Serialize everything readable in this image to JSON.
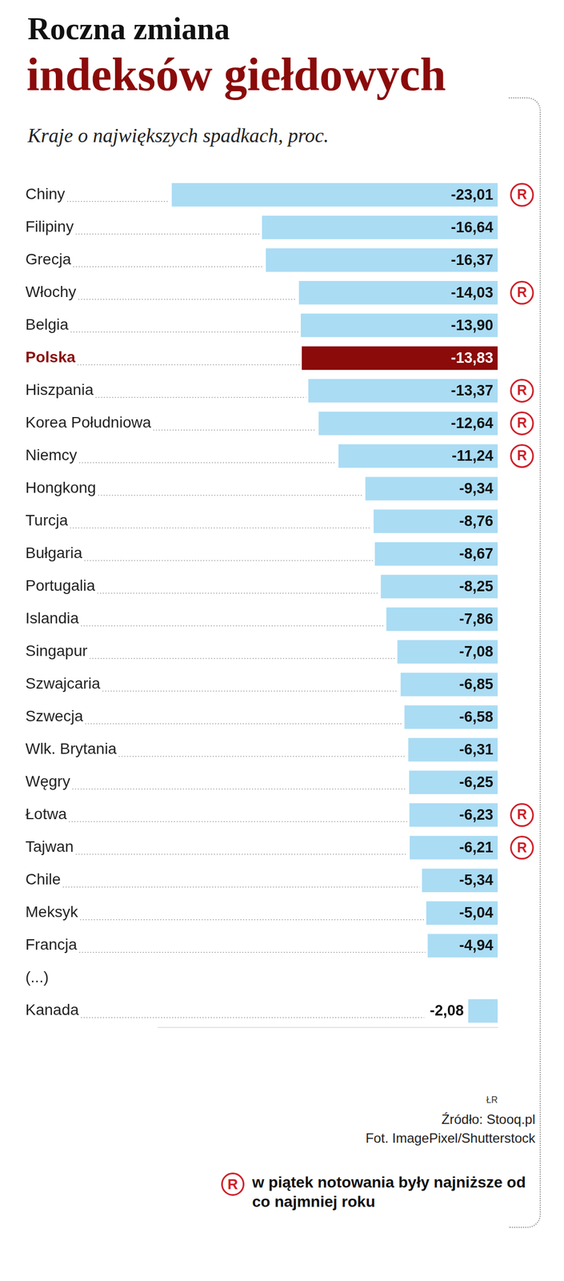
{
  "chart_data": {
    "type": "bar",
    "orientation": "horizontal",
    "title": [
      "Roczna zmiana",
      "indeksów giełdowych"
    ],
    "subtitle": "Kraje o największych spadkach, proc.",
    "categories": [
      "Chiny",
      "Filipiny",
      "Grecja",
      "Włochy",
      "Belgia",
      "Polska",
      "Hiszpania",
      "Korea Południowa",
      "Niemcy",
      "Hongkong",
      "Turcja",
      "Bułgaria",
      "Portugalia",
      "Islandia",
      "Singapur",
      "Szwajcaria",
      "Szwecja",
      "Wlk. Brytania",
      "Węgry",
      "Łotwa",
      "Tajwan",
      "Chile",
      "Meksyk",
      "Francja",
      "(...)",
      "Kanada"
    ],
    "values": [
      -23.01,
      -16.64,
      -16.37,
      -14.03,
      -13.9,
      -13.83,
      -13.37,
      -12.64,
      -11.24,
      -9.34,
      -8.76,
      -8.67,
      -8.25,
      -7.86,
      -7.08,
      -6.85,
      -6.58,
      -6.31,
      -6.25,
      -6.23,
      -6.21,
      -5.34,
      -5.04,
      -4.94,
      null,
      -2.08
    ],
    "value_labels": [
      "-23,01",
      "-16,64",
      "-16,37",
      "-14,03",
      "-13,90",
      "-13,83",
      "-13,37",
      "-12,64",
      "-11,24",
      "-9,34",
      "-8,76",
      "-8,67",
      "-8,25",
      "-7,86",
      "-7,08",
      "-6,85",
      "-6,58",
      "-6,31",
      "-6,25",
      "-6,23",
      "-6,21",
      "-5,34",
      "-5,04",
      "-4,94",
      null,
      "-2,08"
    ],
    "data_labels": true,
    "color": "#aadcf4",
    "colors": [
      "#aadcf4",
      "#aadcf4",
      "#aadcf4",
      "#aadcf4",
      "#aadcf4",
      "#8b0a0a",
      "#aadcf4",
      "#aadcf4",
      "#aadcf4",
      "#aadcf4",
      "#aadcf4",
      "#aadcf4",
      "#aadcf4",
      "#aadcf4",
      "#aadcf4",
      "#aadcf4",
      "#aadcf4",
      "#aadcf4",
      "#aadcf4",
      "#aadcf4",
      "#aadcf4",
      "#aadcf4",
      "#aadcf4",
      "#aadcf4",
      "#aadcf4",
      "#aadcf4"
    ],
    "record_low": [
      true,
      false,
      false,
      true,
      false,
      false,
      true,
      true,
      true,
      false,
      false,
      false,
      false,
      false,
      false,
      false,
      false,
      false,
      false,
      true,
      true,
      false,
      false,
      false,
      false,
      false
    ],
    "record_marker": "R",
    "annotations": {
      "note": "w piątek notowania były najniższe od co najmniej roku",
      "credit": "ŁR",
      "source": "Źródło: Stooq.pl",
      "photo": "Fot. ImagePixel/Shutterstock"
    },
    "xlim": [
      -24,
      0
    ],
    "tick_labels": "y",
    "grid": false,
    "legend": false
  }
}
